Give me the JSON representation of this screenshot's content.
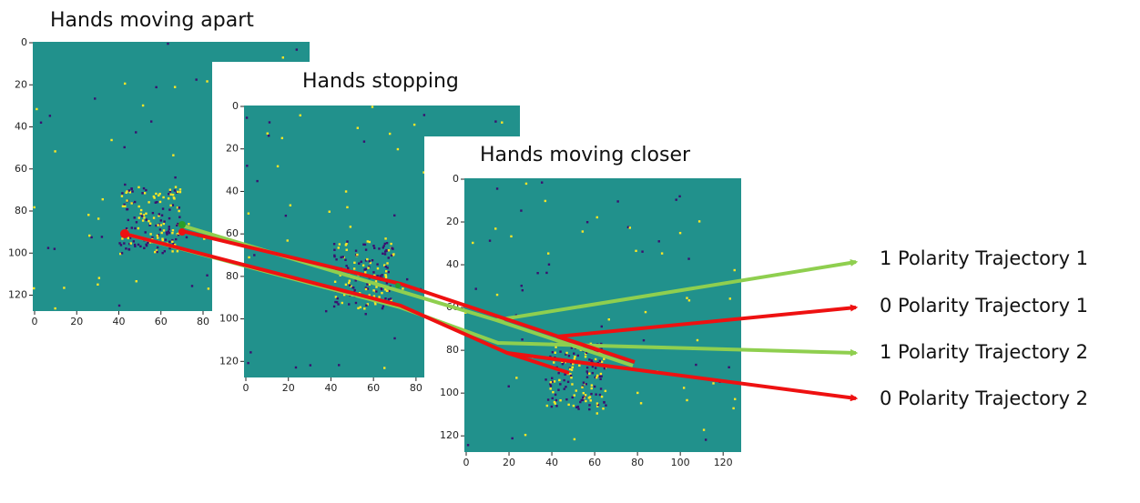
{
  "panels": [
    {
      "title": "Hands moving apart",
      "xticks": [
        0,
        20,
        40,
        60,
        80
      ],
      "yticks": [
        0,
        20,
        40,
        60,
        80,
        100,
        120
      ]
    },
    {
      "title": "Hands stopping",
      "xticks": [
        0,
        20,
        40,
        60,
        80
      ],
      "yticks": [
        0,
        20,
        40,
        60,
        80,
        100,
        120
      ]
    },
    {
      "title": "Hands moving closer",
      "xticks": [
        0,
        20,
        40,
        60,
        80,
        100,
        120
      ],
      "yticks": [
        0,
        20,
        40,
        60,
        80,
        100,
        120
      ]
    }
  ],
  "labels": [
    "1 Polarity Trajectory 1",
    "0 Polarity Trajectory 1",
    "1 Polarity Trajectory 2",
    "0 Polarity Trajectory 2"
  ]
}
